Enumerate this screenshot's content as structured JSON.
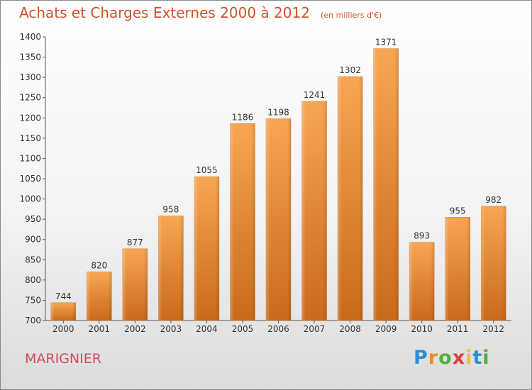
{
  "chart_data": {
    "type": "bar",
    "title": "Achats et Charges Externes 2000 à 2012",
    "subtitle": "(en milliers d'€)",
    "categories": [
      "2000",
      "2001",
      "2002",
      "2003",
      "2004",
      "2005",
      "2006",
      "2007",
      "2008",
      "2009",
      "2010",
      "2011",
      "2012"
    ],
    "values": [
      744,
      820,
      877,
      958,
      1055,
      1186,
      1198,
      1241,
      1302,
      1371,
      893,
      955,
      982
    ],
    "ylim": [
      700,
      1400
    ],
    "yticks": [
      700,
      750,
      800,
      850,
      900,
      950,
      1000,
      1050,
      1100,
      1150,
      1200,
      1250,
      1300,
      1350,
      1400
    ],
    "grid": false,
    "bar_color": "#f0913a",
    "bar_color_dark": "#c96a1a"
  },
  "location": "MARIGNIER",
  "logo": {
    "letters": [
      "P",
      "r",
      "o",
      "x",
      "i",
      "t",
      "i"
    ],
    "colors": [
      "#2a8fd6",
      "#f08a24",
      "#4fae3c",
      "#e23b3b",
      "#f2c12e",
      "#2a8fd6",
      "#4fae3c"
    ]
  },
  "colors": {
    "title": "#d0522a",
    "location": "#d8475e"
  }
}
